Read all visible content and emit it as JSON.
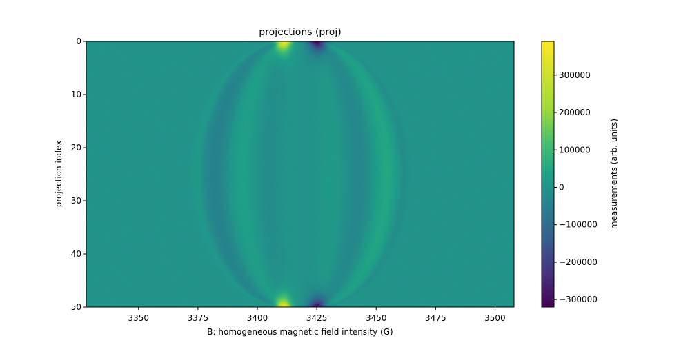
{
  "chart_data": {
    "type": "heatmap",
    "title": "projections (proj)",
    "xlabel": "B: homogeneous magnetic field intensity (G)",
    "ylabel": "projection index",
    "xlim": [
      3328,
      3508
    ],
    "ylim": [
      50,
      0
    ],
    "x_ticks": [
      {
        "value": 3350,
        "label": "3350"
      },
      {
        "value": 3375,
        "label": "3375"
      },
      {
        "value": 3400,
        "label": "3400"
      },
      {
        "value": 3425,
        "label": "3425"
      },
      {
        "value": 3450,
        "label": "3450"
      },
      {
        "value": 3475,
        "label": "3475"
      },
      {
        "value": 3500,
        "label": "3500"
      }
    ],
    "y_ticks": [
      {
        "value": 0,
        "label": "0"
      },
      {
        "value": 10,
        "label": "10"
      },
      {
        "value": 20,
        "label": "20"
      },
      {
        "value": 30,
        "label": "30"
      },
      {
        "value": 40,
        "label": "40"
      },
      {
        "value": 50,
        "label": "50"
      }
    ],
    "colorbar": {
      "label": "measurements (arb. units)",
      "colormap": "viridis",
      "range": [
        -320000,
        390000
      ],
      "ticks": [
        {
          "value": 300000,
          "label": "300000"
        },
        {
          "value": 200000,
          "label": "200000"
        },
        {
          "value": 100000,
          "label": "100000"
        },
        {
          "value": 0,
          "label": "0"
        },
        {
          "value": -100000,
          "label": "−100000"
        },
        {
          "value": -200000,
          "label": "−200000"
        },
        {
          "value": -300000,
          "label": "−300000"
        }
      ]
    },
    "features": {
      "center_field": 3418,
      "max_half_width_at_middle": 42,
      "half_width_at_ends": 6,
      "peak_positive": 390000,
      "peak_negative": -320000,
      "positive_side": "low-field",
      "negative_side": "high-field"
    }
  }
}
